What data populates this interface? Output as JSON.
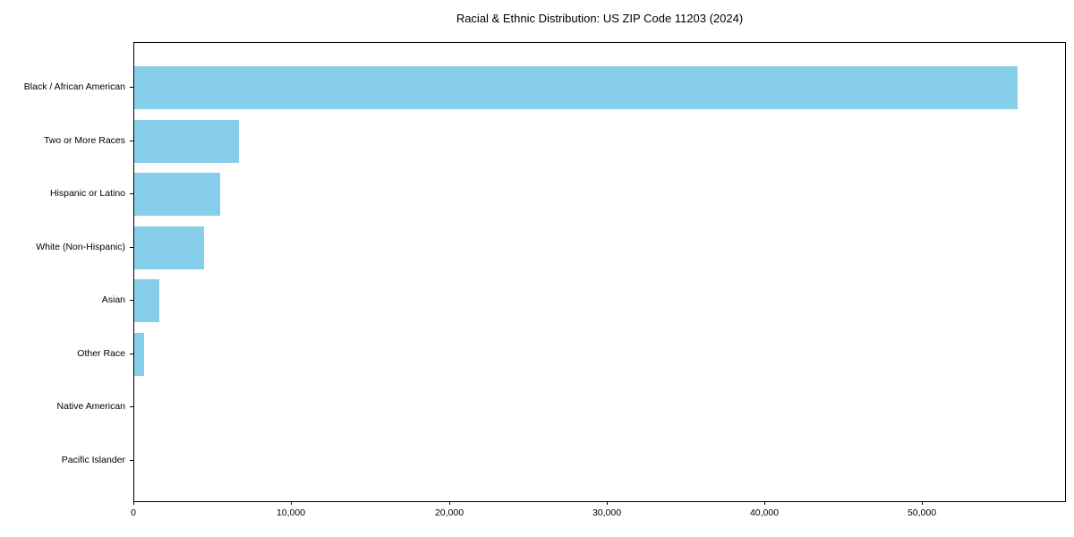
{
  "title": "Racial & Ethnic Distribution: US ZIP Code 11203 (2024)",
  "chart_data": {
    "type": "bar",
    "orientation": "horizontal",
    "title": "Racial & Ethnic Distribution: US ZIP Code 11203 (2024)",
    "categories": [
      "Black / African American",
      "Two or More Races",
      "Hispanic or Latino",
      "White (Non-Hispanic)",
      "Asian",
      "Other Race",
      "Native American",
      "Pacific Islander"
    ],
    "values": [
      56000,
      6650,
      5450,
      4400,
      1600,
      650,
      0,
      0
    ],
    "xlabel": "",
    "ylabel": "",
    "xlim": [
      0,
      59000
    ],
    "xticks": [
      {
        "value": 0,
        "label": "0"
      },
      {
        "value": 10000,
        "label": "10,000"
      },
      {
        "value": 20000,
        "label": "20,000"
      },
      {
        "value": 30000,
        "label": "30,000"
      },
      {
        "value": 40000,
        "label": "40,000"
      },
      {
        "value": 50000,
        "label": "50,000"
      }
    ],
    "bar_color": "#87CEEB",
    "axis_color": "#000000",
    "background_color": "#ffffff",
    "grid": false,
    "legend": "none"
  }
}
